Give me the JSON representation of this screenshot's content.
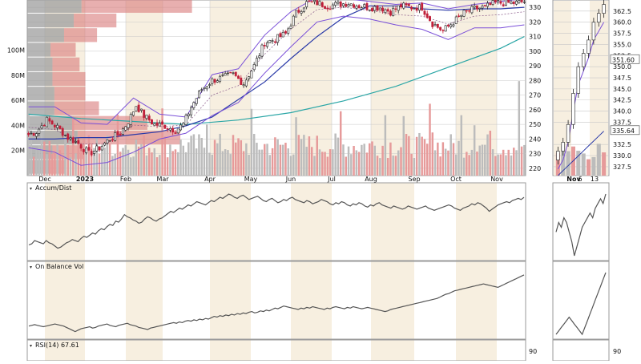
{
  "chart_data": {
    "type": "line",
    "colors": {
      "up": "#202020",
      "down": "#c0203a",
      "volume_up": "#bcbcbc",
      "volume_down": "#e69a9a",
      "bb": "#7a4fd8",
      "sma50": "#2a3aa8",
      "sma200": "#2aa6a6",
      "shade": "#f7efe0",
      "grid": "#c8c8c8",
      "line": "#555555"
    },
    "main_chart": {
      "type": "candlestick",
      "ylim": [
        215,
        335
      ],
      "y_ticks": [
        "330",
        "320",
        "310",
        "300",
        "290",
        "280",
        "270",
        "260",
        "250",
        "240",
        "230",
        "220"
      ],
      "x_ticks": [
        "Dec",
        "2023",
        "Feb",
        "Mar",
        "Apr",
        "May",
        "Jun",
        "Jul",
        "Aug",
        "Sep",
        "Oct",
        "Nov"
      ],
      "volume_ticks": [
        "100M",
        "80M",
        "60M",
        "40M",
        "20M"
      ],
      "volume_ylim": [
        0,
        140
      ],
      "indicators": [
        "Bollinger Bands (20,2)",
        "SMA 50",
        "SMA 200",
        "Volume-by-Price"
      ],
      "close_path": [
        {
          "x": 0,
          "y": 243
        },
        {
          "x": 3,
          "y": 245
        },
        {
          "x": 7,
          "y": 253
        },
        {
          "x": 11,
          "y": 248
        },
        {
          "x": 15,
          "y": 241
        },
        {
          "x": 19,
          "y": 237
        },
        {
          "x": 23,
          "y": 230
        },
        {
          "x": 27,
          "y": 234
        },
        {
          "x": 31,
          "y": 240
        },
        {
          "x": 35,
          "y": 244
        },
        {
          "x": 38,
          "y": 252
        },
        {
          "x": 41,
          "y": 263
        },
        {
          "x": 44,
          "y": 256
        },
        {
          "x": 48,
          "y": 250
        },
        {
          "x": 52,
          "y": 249
        },
        {
          "x": 56,
          "y": 246
        },
        {
          "x": 59,
          "y": 250
        },
        {
          "x": 62,
          "y": 262
        },
        {
          "x": 66,
          "y": 274
        },
        {
          "x": 70,
          "y": 280
        },
        {
          "x": 74,
          "y": 282
        },
        {
          "x": 78,
          "y": 284
        },
        {
          "x": 82,
          "y": 278
        },
        {
          "x": 86,
          "y": 290
        },
        {
          "x": 90,
          "y": 306
        },
        {
          "x": 94,
          "y": 308
        },
        {
          "x": 98,
          "y": 312
        },
        {
          "x": 102,
          "y": 326
        },
        {
          "x": 106,
          "y": 333
        },
        {
          "x": 110,
          "y": 333
        },
        {
          "x": 114,
          "y": 331
        },
        {
          "x": 118,
          "y": 332
        },
        {
          "x": 122,
          "y": 333
        },
        {
          "x": 126,
          "y": 331
        },
        {
          "x": 130,
          "y": 330
        },
        {
          "x": 134,
          "y": 330
        },
        {
          "x": 138,
          "y": 327
        },
        {
          "x": 142,
          "y": 331
        },
        {
          "x": 146,
          "y": 330
        },
        {
          "x": 150,
          "y": 330
        },
        {
          "x": 154,
          "y": 319
        },
        {
          "x": 158,
          "y": 314
        },
        {
          "x": 162,
          "y": 320
        },
        {
          "x": 166,
          "y": 326
        },
        {
          "x": 170,
          "y": 329
        },
        {
          "x": 174,
          "y": 330
        },
        {
          "x": 178,
          "y": 333
        },
        {
          "x": 182,
          "y": 333
        },
        {
          "x": 186,
          "y": 333
        },
        {
          "x": 189,
          "y": 334
        }
      ],
      "bollinger_upper": [
        {
          "x": 0,
          "y": 262
        },
        {
          "x": 10,
          "y": 262
        },
        {
          "x": 20,
          "y": 251
        },
        {
          "x": 30,
          "y": 250
        },
        {
          "x": 40,
          "y": 268
        },
        {
          "x": 50,
          "y": 257
        },
        {
          "x": 60,
          "y": 255
        },
        {
          "x": 70,
          "y": 284
        },
        {
          "x": 80,
          "y": 288
        },
        {
          "x": 90,
          "y": 311
        },
        {
          "x": 100,
          "y": 327
        },
        {
          "x": 110,
          "y": 337
        },
        {
          "x": 120,
          "y": 336
        },
        {
          "x": 130,
          "y": 334
        },
        {
          "x": 140,
          "y": 332
        },
        {
          "x": 150,
          "y": 333
        },
        {
          "x": 160,
          "y": 329
        },
        {
          "x": 170,
          "y": 332
        },
        {
          "x": 180,
          "y": 334
        },
        {
          "x": 189,
          "y": 336
        }
      ],
      "bollinger_lower": [
        {
          "x": 0,
          "y": 234
        },
        {
          "x": 10,
          "y": 231
        },
        {
          "x": 20,
          "y": 222
        },
        {
          "x": 30,
          "y": 224
        },
        {
          "x": 40,
          "y": 231
        },
        {
          "x": 50,
          "y": 240
        },
        {
          "x": 60,
          "y": 244
        },
        {
          "x": 70,
          "y": 256
        },
        {
          "x": 80,
          "y": 265
        },
        {
          "x": 90,
          "y": 285
        },
        {
          "x": 100,
          "y": 303
        },
        {
          "x": 110,
          "y": 320
        },
        {
          "x": 120,
          "y": 324
        },
        {
          "x": 130,
          "y": 322
        },
        {
          "x": 140,
          "y": 318
        },
        {
          "x": 150,
          "y": 315
        },
        {
          "x": 160,
          "y": 308
        },
        {
          "x": 170,
          "y": 316
        },
        {
          "x": 180,
          "y": 316
        },
        {
          "x": 189,
          "y": 318
        }
      ],
      "sma50": [
        {
          "x": 0,
          "y": 240
        },
        {
          "x": 10,
          "y": 240
        },
        {
          "x": 20,
          "y": 241
        },
        {
          "x": 30,
          "y": 241
        },
        {
          "x": 40,
          "y": 243
        },
        {
          "x": 50,
          "y": 245
        },
        {
          "x": 60,
          "y": 249
        },
        {
          "x": 70,
          "y": 255
        },
        {
          "x": 80,
          "y": 267
        },
        {
          "x": 90,
          "y": 279
        },
        {
          "x": 100,
          "y": 295
        },
        {
          "x": 110,
          "y": 310
        },
        {
          "x": 120,
          "y": 323
        },
        {
          "x": 130,
          "y": 331
        },
        {
          "x": 140,
          "y": 331
        },
        {
          "x": 150,
          "y": 329
        },
        {
          "x": 160,
          "y": 328
        },
        {
          "x": 170,
          "y": 329
        },
        {
          "x": 180,
          "y": 329
        },
        {
          "x": 189,
          "y": 330
        }
      ],
      "sma200": [
        {
          "x": 0,
          "y": 257
        },
        {
          "x": 20,
          "y": 254
        },
        {
          "x": 40,
          "y": 252
        },
        {
          "x": 60,
          "y": 250
        },
        {
          "x": 80,
          "y": 253
        },
        {
          "x": 100,
          "y": 258
        },
        {
          "x": 120,
          "y": 266
        },
        {
          "x": 140,
          "y": 276
        },
        {
          "x": 160,
          "y": 289
        },
        {
          "x": 180,
          "y": 302
        },
        {
          "x": 189,
          "y": 310
        }
      ],
      "volume_by_price": [
        {
          "price": 331,
          "up": 28,
          "down": 57
        },
        {
          "price": 321,
          "up": 24,
          "down": 22
        },
        {
          "price": 311,
          "up": 19,
          "down": 17
        },
        {
          "price": 301,
          "up": 12,
          "down": 13
        },
        {
          "price": 291,
          "up": 13,
          "down": 14
        },
        {
          "price": 281,
          "up": 13,
          "down": 17
        },
        {
          "price": 271,
          "up": 14,
          "down": 16
        },
        {
          "price": 261,
          "up": 14,
          "down": 23
        },
        {
          "price": 251,
          "up": 24,
          "down": 38
        },
        {
          "price": 241,
          "up": 26,
          "down": 53
        },
        {
          "price": 231,
          "up": 13,
          "down": 16
        },
        {
          "price": 221,
          "up": 12,
          "down": 8
        }
      ]
    },
    "zoom_chart": {
      "type": "candlestick",
      "y_ticks": [
        "362.5",
        "360.0",
        "357.5",
        "355.0",
        "352.5",
        "350.0",
        "347.5",
        "345.0",
        "342.5",
        "340.0",
        "337.5",
        "332.5",
        "330.0",
        "327.5"
      ],
      "ylim": [
        325.5,
        365
      ],
      "x_ticks": [
        "Nov",
        "6",
        "13"
      ],
      "price_flags": [
        {
          "label": "351.60",
          "value": 351.6
        },
        {
          "label": "335.64",
          "value": 335.64
        }
      ],
      "close_path": [
        {
          "x": 0,
          "y": 331
        },
        {
          "x": 1,
          "y": 333
        },
        {
          "x": 2,
          "y": 337
        },
        {
          "x": 3,
          "y": 344
        },
        {
          "x": 4,
          "y": 350
        },
        {
          "x": 5,
          "y": 353
        },
        {
          "x": 6,
          "y": 356
        },
        {
          "x": 7,
          "y": 360
        },
        {
          "x": 8,
          "y": 362
        },
        {
          "x": 9,
          "y": 364
        }
      ]
    },
    "panels": [
      {
        "name": "accum_dist",
        "label": "Accum/Dist",
        "series": [
          2,
          3,
          6,
          5,
          4,
          3,
          6,
          4,
          3,
          1,
          -1,
          0,
          2,
          4,
          5,
          7,
          6,
          5,
          8,
          10,
          9,
          11,
          13,
          12,
          15,
          17,
          16,
          19,
          21,
          20,
          24,
          23,
          26,
          30,
          28,
          27,
          25,
          24,
          22,
          23,
          26,
          28,
          27,
          25,
          24,
          26,
          27,
          29,
          31,
          33,
          32,
          34,
          36,
          35,
          37,
          39,
          38,
          40,
          42,
          41,
          40,
          39,
          41,
          43,
          42,
          44,
          46,
          45,
          47,
          49,
          48,
          46,
          45,
          47,
          48,
          46,
          44,
          45,
          46,
          47,
          45,
          43,
          42,
          44,
          45,
          43,
          41,
          42,
          44,
          43,
          45,
          46,
          44,
          43,
          42,
          41,
          43,
          42,
          40,
          41,
          42,
          44,
          43,
          42,
          40,
          39,
          41,
          40,
          42,
          41,
          39,
          38,
          40,
          39,
          41,
          40,
          38,
          37,
          39,
          38,
          40,
          41,
          39,
          38,
          37,
          36,
          38,
          37,
          36,
          35,
          36,
          38,
          37,
          36,
          35,
          36,
          37,
          38,
          36,
          35,
          34,
          35,
          36,
          37,
          38,
          39,
          38,
          36,
          35,
          34,
          36,
          37,
          38,
          40,
          39,
          41,
          40,
          38,
          36,
          33,
          35,
          37,
          39,
          40,
          41,
          42,
          41,
          43,
          44,
          45,
          44,
          46
        ],
        "ylim": [
          -8,
          52
        ]
      },
      {
        "name": "obv",
        "label": "On Balance Vol",
        "series": [
          0,
          1,
          2,
          1,
          0,
          -1,
          0,
          1,
          2,
          3,
          2,
          1,
          0,
          -2,
          -4,
          -6,
          -8,
          -6,
          -4,
          -3,
          -2,
          -1,
          -3,
          -2,
          0,
          1,
          2,
          3,
          1,
          0,
          -1,
          1,
          2,
          3,
          4,
          2,
          1,
          0,
          -2,
          -3,
          -4,
          -5,
          -3,
          -2,
          -1,
          0,
          1,
          2,
          3,
          4,
          5,
          4,
          6,
          5,
          7,
          8,
          7,
          9,
          8,
          10,
          9,
          11,
          10,
          12,
          14,
          13,
          15,
          14,
          16,
          15,
          17,
          16,
          18,
          17,
          19,
          18,
          20,
          21,
          19,
          20,
          22,
          21,
          23,
          22,
          24,
          26,
          25,
          27,
          29,
          28,
          27,
          26,
          25,
          24,
          26,
          25,
          27,
          26,
          28,
          27,
          26,
          25,
          24,
          26,
          25,
          27,
          28,
          27,
          26,
          25,
          27,
          26,
          28,
          27,
          26,
          25,
          26,
          27,
          26,
          25,
          24,
          23,
          22,
          21,
          22,
          24,
          25,
          26,
          27,
          28,
          29,
          30,
          31,
          32,
          33,
          34,
          35,
          36,
          37,
          38,
          39,
          40,
          42,
          44,
          46,
          47,
          49,
          51,
          52,
          53,
          54,
          55,
          56,
          57,
          58,
          59,
          60,
          61,
          60,
          59,
          58,
          57,
          56,
          58,
          60,
          62,
          64,
          66,
          68,
          70,
          72,
          74
        ],
        "ylim": [
          -12,
          82
        ]
      },
      {
        "name": "rsi",
        "label": "RSI(14) 67.61",
        "tick": "90"
      }
    ]
  }
}
